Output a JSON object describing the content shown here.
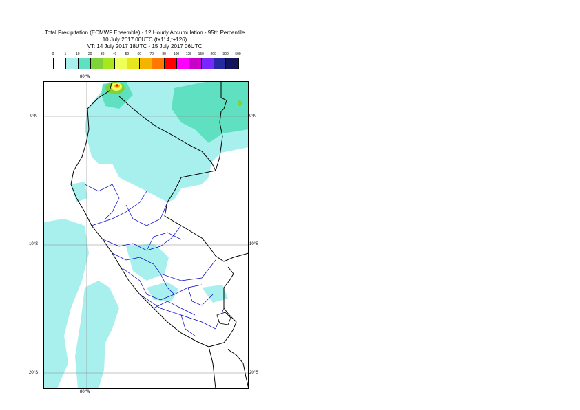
{
  "title": {
    "line1": "Total Precipitation (ECMWF Ensemble) - 12 Hourly Accumulation - 95th Percentile",
    "line2": "10 July 2017 00UTC (t+114,t+126)",
    "line3": "VT: 14 July 2017 18UTC - 15 July 2017 06UTC"
  },
  "legend": {
    "labels": [
      "0",
      "1",
      "10",
      "20",
      "30",
      "40",
      "50",
      "60",
      "70",
      "80",
      "100",
      "125",
      "150",
      "200",
      "300",
      "500"
    ],
    "colors": [
      "#ffffff",
      "#a8f0ee",
      "#5fe0c0",
      "#7fd23a",
      "#a8e61e",
      "#f0ff5a",
      "#e6e61e",
      "#f5b400",
      "#ff7800",
      "#ff0000",
      "#ff00ff",
      "#c800c8",
      "#7828ff",
      "#2828a0",
      "#14145a"
    ]
  },
  "map": {
    "lon_top": "80°W",
    "lon_bottom": "80°W",
    "lat_0_left": "0°N",
    "lat_0_right": "0°N",
    "lat_10_left": "10°S",
    "lat_10_right": "10°S",
    "lat_20_left": "20°S",
    "lat_20_right": "20°S",
    "ocean_color": "#ffffff",
    "precip_light_color": "#a8f0ee",
    "precip_medium_color": "#5fe0c0",
    "border_color": "#000000",
    "region_border_color": "#0000c8"
  }
}
